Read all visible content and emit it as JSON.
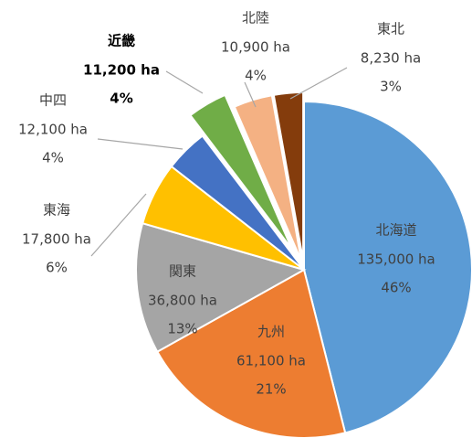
{
  "chart_data": {
    "type": "pie",
    "categories": [
      "北海道",
      "九州",
      "関東",
      "東海",
      "中四",
      "近畿",
      "北陸",
      "東北"
    ],
    "values": [
      135000,
      61100,
      36800,
      17800,
      12100,
      11200,
      10900,
      8230
    ],
    "value_labels": [
      "135,000 ha",
      "61,100 ha",
      "36,800 ha",
      "17,800 ha",
      "12,100 ha",
      "11,200 ha",
      "10,900 ha",
      "8,230 ha"
    ],
    "percent_labels": [
      "46%",
      "21%",
      "13%",
      "6%",
      "4%",
      "4%",
      "4%",
      "3%"
    ],
    "colors": [
      "#5b9bd5",
      "#ed7d31",
      "#a5a5a5",
      "#ffc000",
      "#4472c4",
      "#70ad47",
      "#f4b183",
      "#843c0c"
    ]
  }
}
